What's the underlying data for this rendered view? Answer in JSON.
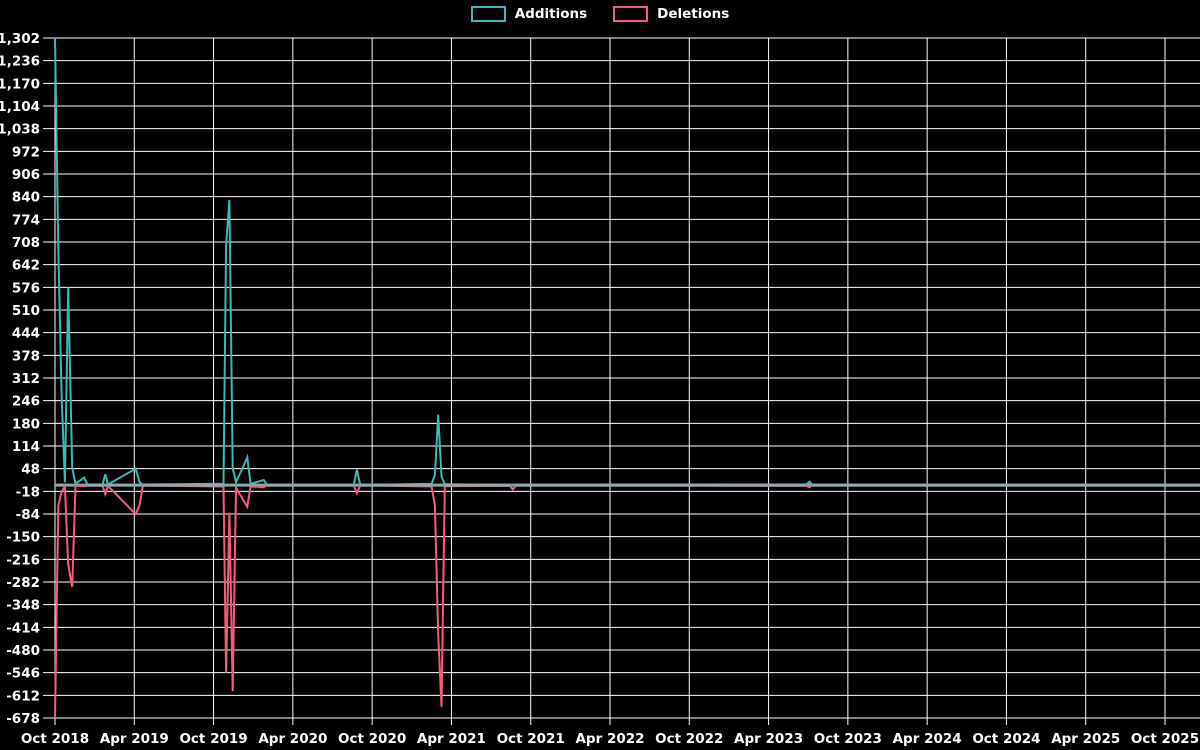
{
  "page": {
    "background": "#000000",
    "text_color": "#ffffff",
    "grid_color": "#ffffff"
  },
  "legend": {
    "items": [
      {
        "label": "Additions",
        "color": "#3DB8B2"
      },
      {
        "label": "Deletions",
        "color": "#F75B7A"
      }
    ]
  },
  "chart_data": {
    "type": "line",
    "title": "",
    "xlabel": "",
    "ylabel": "",
    "grid": true,
    "legend_position": "top-center",
    "background": "#000000",
    "baseline_overlap_color": "#8FA9B1",
    "x_axis": {
      "unit": "months since Oct 2018",
      "tick_months": [
        0,
        6,
        12,
        18,
        24,
        30,
        36,
        42,
        48,
        54,
        60,
        66,
        72,
        78,
        84
      ],
      "tick_labels": [
        "Oct 2018",
        "Apr 2019",
        "Oct 2019",
        "Apr 2020",
        "Oct 2020",
        "Apr 2021",
        "Oct 2021",
        "Apr 2022",
        "Oct 2022",
        "Apr 2023",
        "Oct 2023",
        "Apr 2024",
        "Oct 2024",
        "Apr 2025",
        "Oct 2025"
      ],
      "range_months": [
        0,
        86.6
      ]
    },
    "y_axis": {
      "min": -678,
      "max": 1302,
      "step": 66,
      "tick_values": [
        1302,
        1236,
        1170,
        1104,
        1038,
        972,
        906,
        840,
        774,
        708,
        642,
        576,
        510,
        444,
        378,
        312,
        246,
        180,
        114,
        48,
        -18,
        -84,
        -150,
        -216,
        -282,
        -348,
        -414,
        -480,
        -546,
        -612,
        -678
      ],
      "tick_labels": [
        "1,302",
        "1,236",
        "1,170",
        "1,104",
        "1,038",
        "972",
        "906",
        "840",
        "774",
        "708",
        "642",
        "576",
        "510",
        "444",
        "378",
        "312",
        "246",
        "180",
        "114",
        "48",
        "-18",
        "-84",
        "-150",
        "-216",
        "-282",
        "-348",
        "-414",
        "-480",
        "-546",
        "-612",
        "-678"
      ]
    },
    "series": [
      {
        "name": "Additions",
        "color": "#3DB8B2",
        "points": [
          [
            0,
            1302
          ],
          [
            0.25,
            690
          ],
          [
            0.5,
            262
          ],
          [
            0.75,
            8
          ],
          [
            1.0,
            576
          ],
          [
            1.3,
            50
          ],
          [
            1.55,
            4
          ],
          [
            2.2,
            22
          ],
          [
            2.45,
            2
          ],
          [
            3.6,
            2
          ],
          [
            3.8,
            32
          ],
          [
            4.0,
            2
          ],
          [
            6.1,
            48
          ],
          [
            6.4,
            8
          ],
          [
            6.65,
            2
          ],
          [
            12.75,
            4
          ],
          [
            12.95,
            700
          ],
          [
            13.2,
            830
          ],
          [
            13.45,
            50
          ],
          [
            13.7,
            8
          ],
          [
            14.55,
            81
          ],
          [
            14.8,
            4
          ],
          [
            15.8,
            15
          ],
          [
            16.05,
            0
          ],
          [
            22.6,
            0
          ],
          [
            22.85,
            45
          ],
          [
            23.1,
            0
          ],
          [
            28.5,
            4
          ],
          [
            28.75,
            30
          ],
          [
            29.0,
            205
          ],
          [
            29.25,
            25
          ],
          [
            29.5,
            3
          ],
          [
            34.4,
            0
          ],
          [
            34.65,
            0
          ],
          [
            34.9,
            0
          ],
          [
            56.85,
            2
          ],
          [
            57.1,
            10
          ],
          [
            57.35,
            0
          ],
          [
            86.6,
            0
          ]
        ]
      },
      {
        "name": "Deletions",
        "color": "#F75B7A",
        "points": [
          [
            0,
            -678
          ],
          [
            0.25,
            -60
          ],
          [
            0.5,
            -20
          ],
          [
            0.75,
            -4
          ],
          [
            1.0,
            -230
          ],
          [
            1.3,
            -296
          ],
          [
            1.55,
            -2
          ],
          [
            2.2,
            -3
          ],
          [
            2.45,
            -1
          ],
          [
            3.6,
            -2
          ],
          [
            3.8,
            -26
          ],
          [
            4.0,
            -2
          ],
          [
            6.1,
            -84
          ],
          [
            6.4,
            -58
          ],
          [
            6.65,
            -1
          ],
          [
            12.75,
            -4
          ],
          [
            12.95,
            -546
          ],
          [
            13.2,
            -80
          ],
          [
            13.45,
            -600
          ],
          [
            13.7,
            -8
          ],
          [
            14.55,
            -63
          ],
          [
            14.8,
            -4
          ],
          [
            15.8,
            -6
          ],
          [
            16.05,
            0
          ],
          [
            22.6,
            0
          ],
          [
            22.85,
            -23
          ],
          [
            23.1,
            0
          ],
          [
            28.5,
            -4
          ],
          [
            28.75,
            -60
          ],
          [
            29.0,
            -435
          ],
          [
            29.25,
            -645
          ],
          [
            29.5,
            -3
          ],
          [
            34.4,
            -2
          ],
          [
            34.65,
            -12
          ],
          [
            34.9,
            0
          ],
          [
            56.85,
            -2
          ],
          [
            57.1,
            -6
          ],
          [
            57.35,
            0
          ],
          [
            86.6,
            0
          ]
        ]
      }
    ]
  }
}
